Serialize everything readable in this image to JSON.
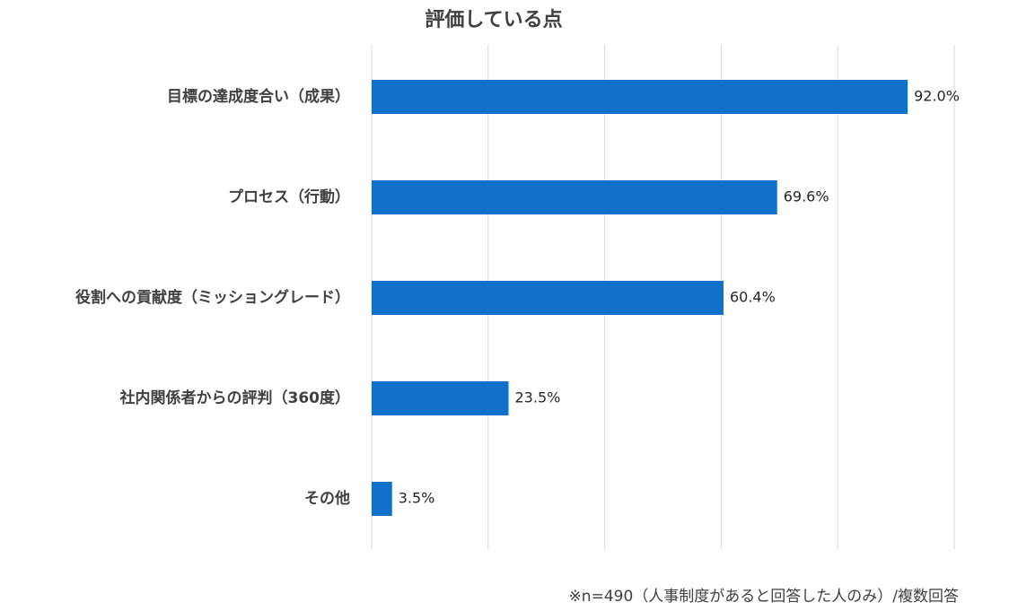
{
  "chart_data": {
    "type": "bar",
    "orientation": "horizontal",
    "title": "評価している点",
    "categories": [
      "目標の達成度合い（成果）",
      "プロセス（行動）",
      "役割への貢献度（ミッショングレード）",
      "社内関係者からの評判（360度）",
      "その他"
    ],
    "values": [
      92.0,
      69.6,
      60.4,
      23.5,
      3.5
    ],
    "value_labels": [
      "92.0%",
      "69.6%",
      "60.4%",
      "23.5%",
      "3.5%"
    ],
    "unit": "%",
    "xlim": [
      0,
      100
    ],
    "grid": true,
    "xlabel": "",
    "ylabel": "",
    "bar_color": "#1170C9",
    "note": "※n=490（人事制度があると回答した人のみ）/複数回答"
  }
}
